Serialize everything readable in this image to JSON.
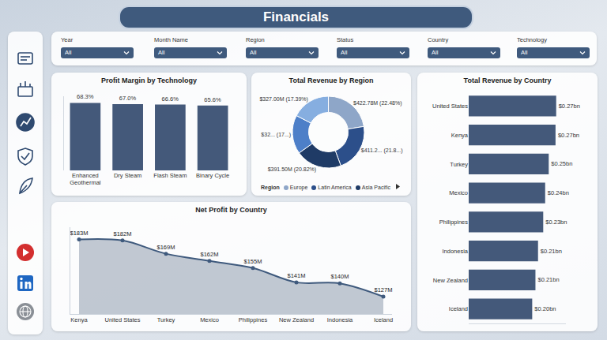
{
  "page": {
    "title": "Financials",
    "filters": [
      {
        "label": "Year",
        "value": "All"
      },
      {
        "label": "Month Name",
        "value": "All"
      },
      {
        "label": "Region",
        "value": "All"
      },
      {
        "label": "Status",
        "value": "All"
      },
      {
        "label": "Country",
        "value": "All"
      },
      {
        "label": "Technology",
        "value": "All"
      }
    ]
  },
  "chart_data": [
    {
      "type": "bar",
      "title": "Profit Margin by Technology",
      "categories": [
        "Enhanced Geothermal",
        "Dry Steam",
        "Flash Steam",
        "Binary Cycle"
      ],
      "values": [
        68.3,
        67.0,
        66.6,
        65.6
      ],
      "value_labels": [
        "68.3%",
        "67.0%",
        "66.6%",
        "65.6%"
      ],
      "color": "#44597a",
      "ylim": [
        0,
        75
      ],
      "data_labels": true,
      "tick_labels": "x",
      "grid": false
    },
    {
      "type": "pie",
      "title": "Total Revenue by Region",
      "categories": [
        "Europe",
        "Latin America",
        "Asia Pacific",
        null,
        null
      ],
      "values": [
        422.78,
        411.25,
        391.5,
        328.2,
        327.0
      ],
      "value_labels": [
        "$422.78M (22.48%)",
        "$411.2... (21.8...)",
        "$391.50M (20.82%)",
        "$32... (17...)",
        "$327.00M (17.39%)"
      ],
      "colors": [
        "#8ea6c8",
        "#2c4f8a",
        "#1f3b66",
        "#4d7fc8",
        "#86aee0"
      ],
      "legend": "bottom",
      "legend_title": "Region",
      "data_labels": true
    },
    {
      "type": "bar",
      "orientation": "horizontal",
      "title": "Total Revenue by Country",
      "categories": [
        "United States",
        "Kenya",
        "Turkey",
        "Mexico",
        "Philippines",
        "Indonesia",
        "New Zealand",
        "Iceland"
      ],
      "values": [
        0.27,
        0.268,
        0.247,
        0.236,
        0.23,
        0.214,
        0.206,
        0.196
      ],
      "value_labels": [
        "$0.27bn",
        "$0.27bn",
        "$0.25bn",
        "$0.24bn",
        "$0.23bn",
        "$0.21bn",
        "$0.21bn",
        "$0.20bn"
      ],
      "color": "#44597a",
      "xlim": [
        0,
        0.3
      ],
      "data_labels": true,
      "tick_labels": "y",
      "grid": false
    },
    {
      "type": "area",
      "title": "Net Profit by Country",
      "categories": [
        "Kenya",
        "United States",
        "Turkey",
        "Mexico",
        "Philippines",
        "New Zealand",
        "Indonesia",
        "Iceland"
      ],
      "values": [
        183,
        182,
        169,
        162,
        155,
        141,
        140,
        127
      ],
      "value_labels": [
        "$183M",
        "$182M",
        "$169M",
        "$162M",
        "$155M",
        "$141M",
        "$140M",
        "$127M"
      ],
      "color": "#3f5a7d",
      "ylim": [
        110,
        195
      ],
      "data_labels": true,
      "tick_labels": "x",
      "marker": "circle",
      "line_style": "solid",
      "grid": false
    }
  ]
}
